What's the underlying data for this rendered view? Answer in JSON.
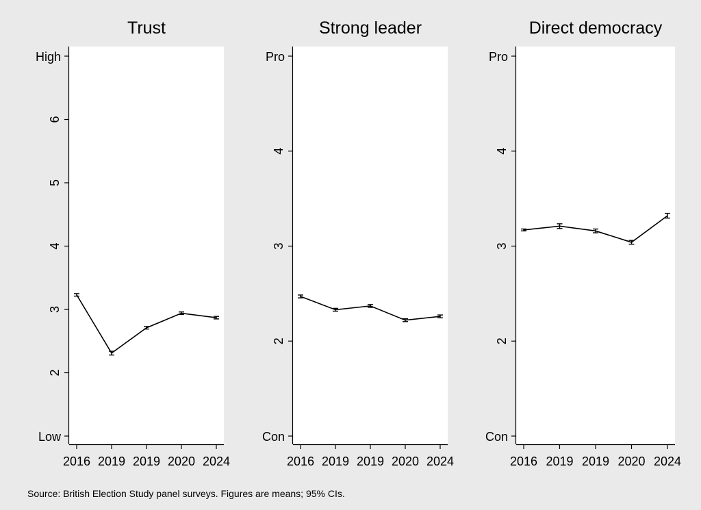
{
  "source_note": "Source: British Election Study panel surveys. Figures are means; 95% CIs.",
  "chart_data": [
    {
      "type": "line",
      "title": "Trust",
      "categories": [
        "2016",
        "2019",
        "2019",
        "2020",
        "2024"
      ],
      "values": [
        3.23,
        2.31,
        2.71,
        2.94,
        2.87
      ],
      "ci_low": [
        3.21,
        2.28,
        2.69,
        2.92,
        2.85
      ],
      "ci_high": [
        3.25,
        2.34,
        2.73,
        2.96,
        2.89
      ],
      "ylim": [
        1,
        7
      ],
      "yticks": [
        {
          "value": 7,
          "label": "High",
          "rotated": false
        },
        {
          "value": 6,
          "label": "6",
          "rotated": true
        },
        {
          "value": 5,
          "label": "5",
          "rotated": true
        },
        {
          "value": 4,
          "label": "4",
          "rotated": true
        },
        {
          "value": 3,
          "label": "3",
          "rotated": true
        },
        {
          "value": 2,
          "label": "2",
          "rotated": true
        },
        {
          "value": 1,
          "label": "Low",
          "rotated": false
        }
      ],
      "grid": false
    },
    {
      "type": "line",
      "title": "Strong leader",
      "categories": [
        "2016",
        "2019",
        "2019",
        "2020",
        "2024"
      ],
      "values": [
        2.47,
        2.33,
        2.37,
        2.22,
        2.26
      ],
      "ci_low": [
        2.455,
        2.315,
        2.355,
        2.205,
        2.245
      ],
      "ci_high": [
        2.485,
        2.345,
        2.385,
        2.235,
        2.275
      ],
      "ylim": [
        1,
        5
      ],
      "yticks": [
        {
          "value": 5,
          "label": "Pro",
          "rotated": false
        },
        {
          "value": 4,
          "label": "4",
          "rotated": true
        },
        {
          "value": 3,
          "label": "3",
          "rotated": true
        },
        {
          "value": 2,
          "label": "2",
          "rotated": true
        },
        {
          "value": 1,
          "label": "Con",
          "rotated": false
        }
      ],
      "grid": false
    },
    {
      "type": "line",
      "title": "Direct democracy",
      "categories": [
        "2016",
        "2019",
        "2019",
        "2020",
        "2024"
      ],
      "values": [
        3.17,
        3.21,
        3.16,
        3.04,
        3.32
      ],
      "ci_low": [
        3.16,
        3.185,
        3.14,
        3.02,
        3.295
      ],
      "ci_high": [
        3.18,
        3.235,
        3.18,
        3.06,
        3.345
      ],
      "ylim": [
        1,
        5
      ],
      "yticks": [
        {
          "value": 5,
          "label": "Pro",
          "rotated": false
        },
        {
          "value": 4,
          "label": "4",
          "rotated": true
        },
        {
          "value": 3,
          "label": "3",
          "rotated": true
        },
        {
          "value": 2,
          "label": "2",
          "rotated": true
        },
        {
          "value": 1,
          "label": "Con",
          "rotated": false
        }
      ],
      "grid": false
    }
  ],
  "colors": {
    "background": "#eaeaea",
    "plot_background": "#ffffff",
    "line": "#000000"
  }
}
